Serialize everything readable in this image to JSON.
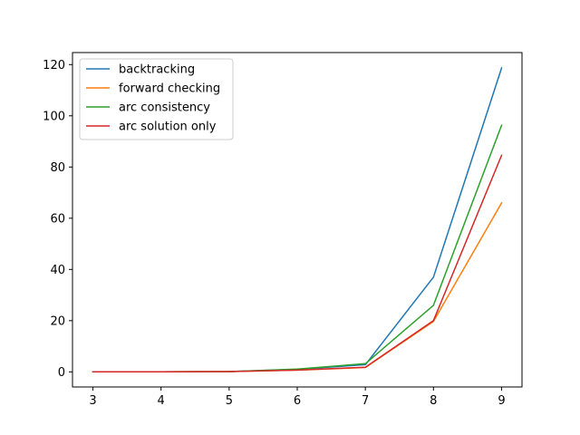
{
  "chart_data": {
    "type": "line",
    "title": "",
    "xlabel": "",
    "ylabel": "",
    "x": [
      3,
      4,
      5,
      6,
      7,
      8,
      9
    ],
    "xlim": [
      2.7,
      9.3
    ],
    "ylim": [
      -5.9,
      124.7
    ],
    "xticks": [
      3,
      4,
      5,
      6,
      7,
      8,
      9
    ],
    "yticks": [
      0,
      20,
      40,
      60,
      80,
      100,
      120
    ],
    "grid": false,
    "legend_position": "top-left",
    "series": [
      {
        "name": "backtracking",
        "color": "#1f77b4",
        "values": [
          0,
          0,
          0.1,
          1.0,
          2.8,
          37.0,
          118.7
        ]
      },
      {
        "name": "forward checking",
        "color": "#ff7f0e",
        "values": [
          0,
          0,
          0.1,
          0.7,
          1.7,
          19.7,
          66.0
        ]
      },
      {
        "name": "arc consistency",
        "color": "#2ca02c",
        "values": [
          0,
          0,
          0.1,
          1.1,
          3.2,
          26.0,
          96.3
        ]
      },
      {
        "name": "arc solution only",
        "color": "#d62728",
        "values": [
          0,
          0,
          0.1,
          0.7,
          1.8,
          20.0,
          84.6
        ]
      }
    ]
  }
}
